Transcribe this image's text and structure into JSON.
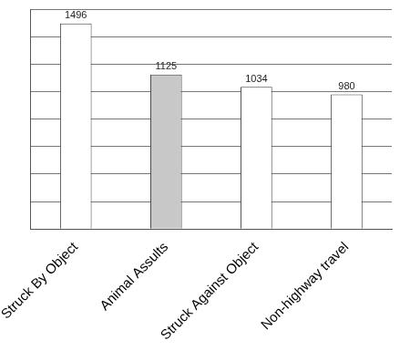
{
  "chart_data": {
    "type": "bar",
    "categories": [
      "Struck By Object",
      "Animal Assults",
      "Struck Against Object",
      "Non-highway travel"
    ],
    "values": [
      1496,
      1125,
      1034,
      980
    ],
    "colors": [
      "#ffffff",
      "#c8c8c8",
      "#ffffff",
      "#ffffff"
    ],
    "ylim": [
      0,
      1600
    ],
    "yticks": [
      0,
      200,
      400,
      600,
      800,
      1000,
      1200,
      1400,
      1600
    ],
    "grid": true,
    "data_labels": true,
    "tick_labels": "x"
  }
}
